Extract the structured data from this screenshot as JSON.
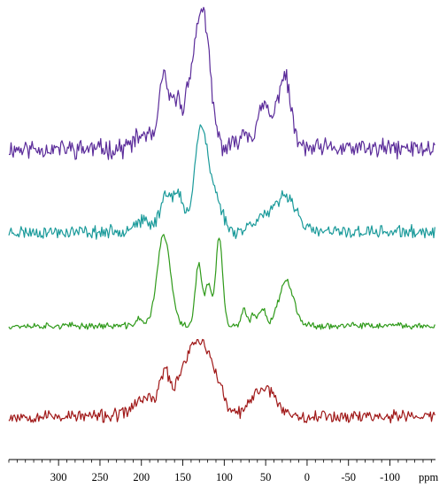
{
  "chart_data": {
    "type": "line",
    "axis": {
      "xlim": [
        360,
        -155
      ],
      "reversed": true,
      "unit_label": "ppm",
      "major_ticks": [
        300,
        250,
        200,
        150,
        100,
        50,
        0,
        -50,
        -100
      ],
      "tick_labels": [
        "300",
        "250",
        "200",
        "150",
        "100",
        "50",
        "0",
        "-50",
        "-100"
      ],
      "minor_tick_step": 10
    },
    "y_axis_shown": false,
    "grid": false,
    "legend": "none",
    "series": [
      {
        "color": "#5b2c9a",
        "noise": 0.055,
        "seed": 11,
        "peaks": [
          {
            "ppm": 127,
            "height": 1.0,
            "width": 9
          },
          {
            "ppm": 173,
            "height": 0.5,
            "width": 5
          },
          {
            "ppm": 158,
            "height": 0.36,
            "width": 6
          },
          {
            "ppm": 143,
            "height": 0.28,
            "width": 5
          },
          {
            "ppm": 28,
            "height": 0.52,
            "width": 8
          },
          {
            "ppm": 52,
            "height": 0.3,
            "width": 7
          },
          {
            "ppm": 75,
            "height": 0.12,
            "width": 8
          },
          {
            "ppm": 195,
            "height": 0.1,
            "width": 12
          }
        ]
      },
      {
        "color": "#1a9a9a",
        "noise": 0.05,
        "seed": 23,
        "peaks": [
          {
            "ppm": 128,
            "height": 1.0,
            "width": 8
          },
          {
            "ppm": 170,
            "height": 0.36,
            "width": 7
          },
          {
            "ppm": 155,
            "height": 0.32,
            "width": 6
          },
          {
            "ppm": 110,
            "height": 0.3,
            "width": 8
          },
          {
            "ppm": 25,
            "height": 0.35,
            "width": 12
          },
          {
            "ppm": 55,
            "height": 0.14,
            "width": 12
          },
          {
            "ppm": 200,
            "height": 0.1,
            "width": 12
          }
        ]
      },
      {
        "color": "#2f9a1a",
        "noise": 0.028,
        "seed": 37,
        "peaks": [
          {
            "ppm": 173,
            "height": 1.0,
            "width": 8
          },
          {
            "ppm": 106,
            "height": 0.98,
            "width": 4
          },
          {
            "ppm": 131,
            "height": 0.68,
            "width": 4
          },
          {
            "ppm": 119,
            "height": 0.45,
            "width": 4
          },
          {
            "ppm": 25,
            "height": 0.5,
            "width": 9
          },
          {
            "ppm": 54,
            "height": 0.2,
            "width": 4
          },
          {
            "ppm": 76,
            "height": 0.18,
            "width": 3
          },
          {
            "ppm": 65,
            "height": 0.12,
            "width": 3
          },
          {
            "ppm": 203,
            "height": 0.08,
            "width": 4
          }
        ]
      },
      {
        "color": "#a01818",
        "noise": 0.075,
        "seed": 53,
        "peaks": [
          {
            "ppm": 130,
            "height": 1.0,
            "width": 11
          },
          {
            "ppm": 172,
            "height": 0.55,
            "width": 6
          },
          {
            "ppm": 150,
            "height": 0.55,
            "width": 10
          },
          {
            "ppm": 110,
            "height": 0.45,
            "width": 9
          },
          {
            "ppm": 52,
            "height": 0.42,
            "width": 14
          },
          {
            "ppm": 195,
            "height": 0.26,
            "width": 14
          }
        ]
      }
    ]
  }
}
